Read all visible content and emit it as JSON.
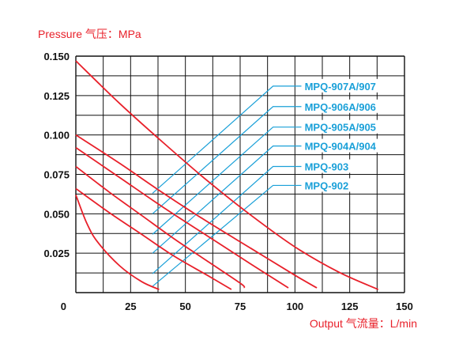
{
  "chart_data": {
    "type": "line",
    "ylabel": "Pressure 气压：MPa",
    "xlabel": "Output 气流量：L/min",
    "x_ticks": [
      "0",
      "25",
      "50",
      "75",
      "100",
      "125",
      "150"
    ],
    "y_ticks": [
      "0.150",
      "0.125",
      "0.100",
      "0.075",
      "0.050",
      "0.025"
    ],
    "xlim": [
      0,
      150
    ],
    "ylim": [
      0,
      0.15
    ],
    "grid": true,
    "series": [
      {
        "name": "MPQ-907A/907",
        "color": "#e8202a",
        "x": [
          0,
          20,
          40,
          60,
          80,
          100,
          120,
          138
        ],
        "y": [
          0.147,
          0.12,
          0.095,
          0.071,
          0.049,
          0.029,
          0.013,
          0.002
        ]
      },
      {
        "name": "MPQ-906A/906",
        "color": "#e8202a",
        "x": [
          0,
          20,
          40,
          60,
          80,
          100,
          110
        ],
        "y": [
          0.1,
          0.082,
          0.063,
          0.045,
          0.028,
          0.011,
          0.003
        ]
      },
      {
        "name": "MPQ-905A/905",
        "color": "#e8202a",
        "x": [
          0,
          20,
          40,
          60,
          80,
          97
        ],
        "y": [
          0.092,
          0.073,
          0.054,
          0.036,
          0.018,
          0.003
        ]
      },
      {
        "name": "MPQ-904A/904",
        "color": "#e8202a",
        "x": [
          0,
          15,
          30,
          45,
          60,
          75,
          77
        ],
        "y": [
          0.08,
          0.064,
          0.049,
          0.034,
          0.02,
          0.006,
          0.003
        ]
      },
      {
        "name": "MPQ-903",
        "color": "#e8202a",
        "x": [
          0,
          15,
          30,
          45,
          60,
          71
        ],
        "y": [
          0.066,
          0.051,
          0.037,
          0.023,
          0.011,
          0.002
        ]
      },
      {
        "name": "MPQ-902",
        "color": "#e8202a",
        "x": [
          0,
          5,
          10,
          20,
          30,
          38
        ],
        "y": [
          0.062,
          0.044,
          0.032,
          0.017,
          0.007,
          0.002
        ]
      }
    ],
    "legend_lines": [
      {
        "label": "MPQ-907A/907",
        "color": "#1aa0d8",
        "x": [
          35,
          90
        ],
        "y": [
          0.063,
          0.131
        ]
      },
      {
        "label": "MPQ-906A/906",
        "color": "#1aa0d8",
        "x": [
          35,
          90
        ],
        "y": [
          0.05,
          0.118
        ]
      },
      {
        "label": "MPQ-905A/905",
        "color": "#1aa0d8",
        "x": [
          35,
          90
        ],
        "y": [
          0.037,
          0.105
        ]
      },
      {
        "label": "MPQ-904A/904",
        "color": "#1aa0d8",
        "x": [
          35,
          90
        ],
        "y": [
          0.025,
          0.093
        ]
      },
      {
        "label": "MPQ-903",
        "color": "#1aa0d8",
        "x": [
          35,
          90
        ],
        "y": [
          0.012,
          0.08
        ]
      },
      {
        "label": "MPQ-902",
        "color": "#1aa0d8",
        "x": [
          35,
          90
        ],
        "y": [
          0.004,
          0.068
        ]
      }
    ]
  }
}
